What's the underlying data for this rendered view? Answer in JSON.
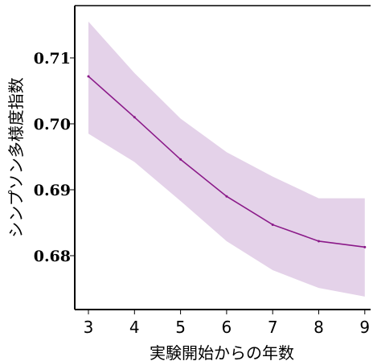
{
  "chart_data": {
    "type": "line",
    "xlabel": "実験開始からの年数",
    "ylabel": "シンプソン多様度指数",
    "xlim": [
      2.8,
      9.1
    ],
    "ylim": [
      0.6715,
      0.7185
    ],
    "x_ticks": [
      3,
      4,
      5,
      6,
      7,
      8,
      9
    ],
    "y_ticks": [
      0.68,
      0.69,
      0.7,
      0.71
    ],
    "y_tick_labels": [
      "0.68",
      "0.69",
      "0.70",
      "0.71"
    ],
    "grid": false,
    "colors": {
      "line": "#8b1a89",
      "band": "#e4d2e9"
    },
    "series": [
      {
        "x": [
          3,
          4,
          5,
          6,
          7,
          8,
          9
        ],
        "y": [
          0.7072,
          0.701,
          0.6946,
          0.689,
          0.6847,
          0.6822,
          0.6813
        ],
        "lower": [
          0.6985,
          0.6942,
          0.6883,
          0.6822,
          0.6778,
          0.6751,
          0.6738
        ],
        "upper": [
          0.7155,
          0.7077,
          0.7008,
          0.6957,
          0.692,
          0.6887,
          0.6887
        ]
      }
    ]
  }
}
